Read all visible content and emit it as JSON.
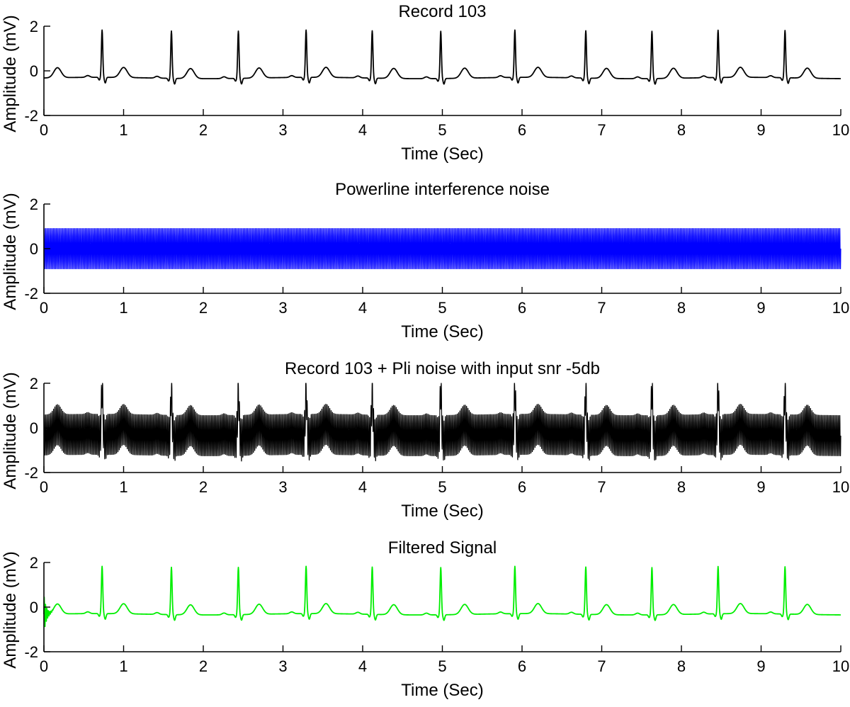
{
  "chart_data": [
    {
      "type": "line",
      "title": "Record 103",
      "xlabel": "Time (Sec)",
      "ylabel": "Amplitude (mV)",
      "xlim": [
        0,
        10
      ],
      "ylim": [
        -2,
        2
      ],
      "xticks": [
        0,
        1,
        2,
        3,
        4,
        5,
        6,
        7,
        8,
        9,
        10
      ],
      "yticks": [
        -2,
        0,
        2
      ],
      "grid": false,
      "series": [
        {
          "color": "#000000",
          "signal": "ecg",
          "baseline_mv": -0.32,
          "r_peak_mv": 1.8,
          "r_peak_times_s": [
            0.73,
            1.6,
            2.44,
            3.29,
            4.12,
            4.98,
            5.91,
            6.8,
            7.63,
            8.46,
            9.3
          ],
          "t_wave_times_s": [
            0.17,
            1.0,
            1.84,
            2.7,
            3.54,
            4.39,
            5.28,
            6.2,
            7.06,
            7.9,
            8.74,
            9.58
          ]
        }
      ]
    },
    {
      "type": "line",
      "title": "Powerline  interference noise",
      "xlabel": "Time (Sec)",
      "ylabel": "Amplitude (mV)",
      "xlim": [
        0,
        10
      ],
      "ylim": [
        -2,
        2
      ],
      "xticks": [
        0,
        1,
        2,
        3,
        4,
        5,
        6,
        7,
        8,
        9,
        10
      ],
      "yticks": [
        -2,
        0,
        2
      ],
      "grid": false,
      "series": [
        {
          "color": "#0000ff",
          "signal": "sinusoid",
          "amplitude_mv": 0.95,
          "frequency_hz": 60
        }
      ]
    },
    {
      "type": "line",
      "title": "Record 103 + Pli noise with input snr -5db",
      "xlabel": "Time (Sec)",
      "ylabel": "Amplitude (mV)",
      "xlim": [
        0,
        10
      ],
      "ylim": [
        -2,
        2
      ],
      "xticks": [
        0,
        1,
        2,
        3,
        4,
        5,
        6,
        7,
        8,
        9,
        10
      ],
      "yticks": [
        -2,
        0,
        2
      ],
      "grid": false,
      "series": [
        {
          "color": "#000000",
          "signal": "ecg+sinusoid",
          "noise_amplitude_mv": 0.95
        }
      ]
    },
    {
      "type": "line",
      "title": "Filtered Signal",
      "xlabel": "Time (Sec)",
      "ylabel": "Amplitude (mV)",
      "xlim": [
        0,
        10
      ],
      "ylim": [
        -2,
        2
      ],
      "xticks": [
        0,
        1,
        2,
        3,
        4,
        5,
        6,
        7,
        8,
        9,
        10
      ],
      "yticks": [
        -2,
        0,
        2
      ],
      "grid": false,
      "series": [
        {
          "color": "#00ee00",
          "signal": "ecg-filtered"
        }
      ]
    }
  ]
}
